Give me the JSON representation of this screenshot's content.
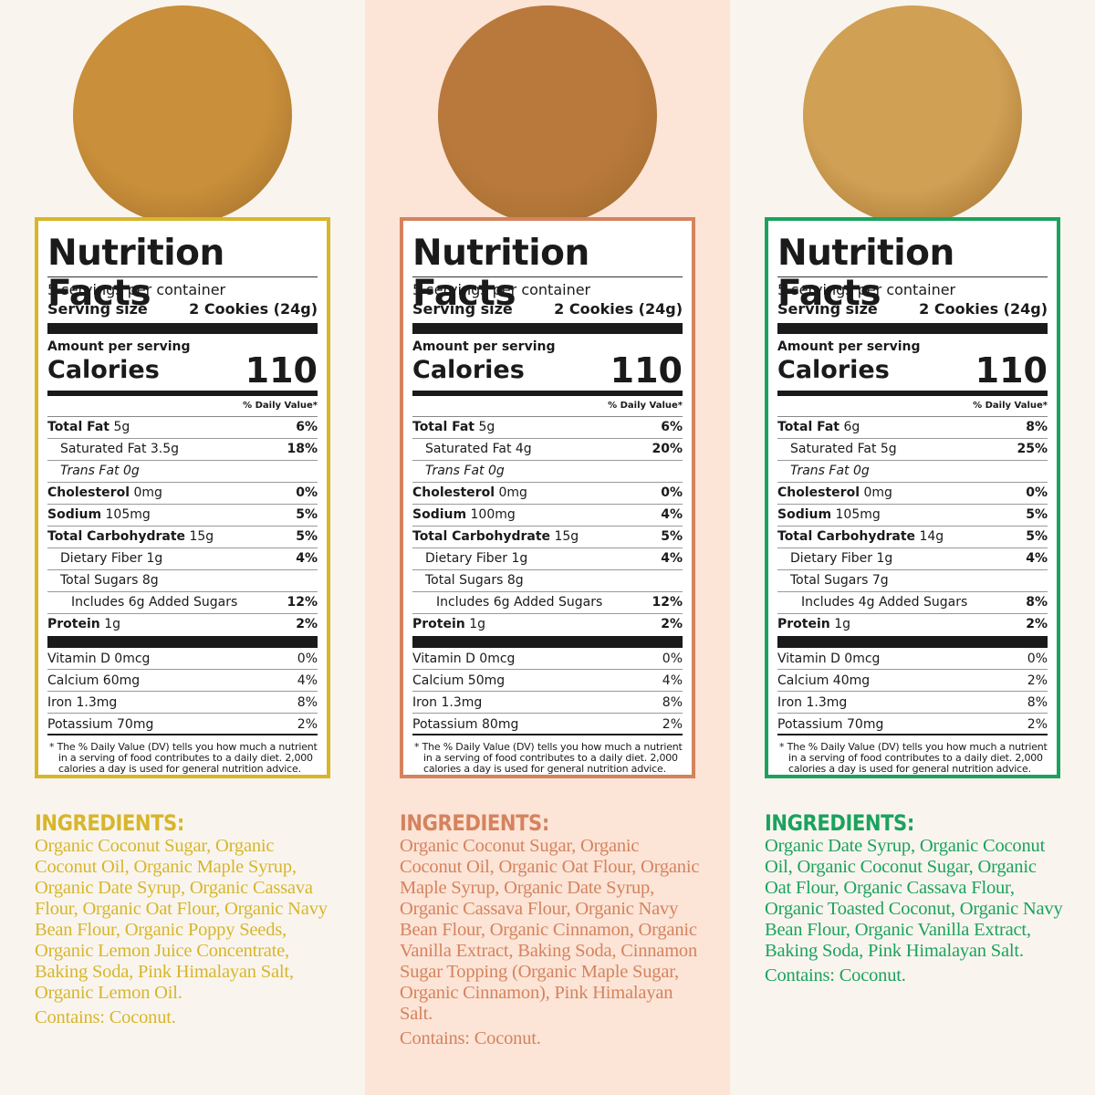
{
  "common": {
    "title": "Nutrition Facts",
    "servings": "5 servings per container",
    "serving_size_label": "Serving size",
    "serving_size_value": "2 Cookies (24g)",
    "amount_per_serving": "Amount per serving",
    "calories_label": "Calories",
    "dv_header": "% Daily Value*",
    "footnote": "* The % Daily Value (DV) tells you how much a nutrient in a serving of food contributes to a daily diet. 2,000 calories a day is used for general nutrition advice.",
    "ingredients_heading": "INGREDIENTS:"
  },
  "products": [
    {
      "accent": "#d8b52b",
      "cookie_color": "#c98f3a",
      "calories": "110",
      "nutrients": [
        {
          "bold": "Total Fat",
          "val": " 5g",
          "dv": "6%",
          "indent": 0
        },
        {
          "bold": "",
          "val": "Saturated Fat 3.5g",
          "dv": "18%",
          "indent": 1
        },
        {
          "bold": "",
          "val": "Trans Fat 0g",
          "dv": "",
          "indent": 1,
          "italic": true
        },
        {
          "bold": "Cholesterol",
          "val": " 0mg",
          "dv": "0%",
          "indent": 0
        },
        {
          "bold": "Sodium",
          "val": " 105mg",
          "dv": "5%",
          "indent": 0
        },
        {
          "bold": "Total Carbohydrate",
          "val": " 15g",
          "dv": "5%",
          "indent": 0
        },
        {
          "bold": "",
          "val": "Dietary Fiber 1g",
          "dv": "4%",
          "indent": 1
        },
        {
          "bold": "",
          "val": "Total Sugars 8g",
          "dv": "",
          "indent": 1
        },
        {
          "bold": "",
          "val": "Includes 6g Added Sugars",
          "dv": "12%",
          "indent": 2
        },
        {
          "bold": "Protein",
          "val": " 1g",
          "dv": "2%",
          "indent": 0
        }
      ],
      "vitamins": [
        {
          "name": "Vitamin D 0mcg",
          "dv": "0%"
        },
        {
          "name": "Calcium 60mg",
          "dv": "4%"
        },
        {
          "name": "Iron 1.3mg",
          "dv": "8%"
        },
        {
          "name": "Potassium 70mg",
          "dv": "2%"
        }
      ],
      "ingredients": "Organic Coconut Sugar, Organic Coconut Oil, Organic Maple Syrup, Organic Date Syrup, Organic Cassava Flour, Organic Oat Flour, Organic Navy Bean Flour, Organic Poppy Seeds, Organic Lemon Juice Concentrate, Baking Soda, Pink Himalayan Salt, Organic Lemon Oil.",
      "contains": "Contains: Coconut."
    },
    {
      "accent": "#d4835e",
      "cookie_color": "#b9793c",
      "calories": "110",
      "nutrients": [
        {
          "bold": "Total Fat",
          "val": " 5g",
          "dv": "6%",
          "indent": 0
        },
        {
          "bold": "",
          "val": "Saturated Fat 4g",
          "dv": "20%",
          "indent": 1
        },
        {
          "bold": "",
          "val": "Trans Fat 0g",
          "dv": "",
          "indent": 1,
          "italic": true
        },
        {
          "bold": "Cholesterol",
          "val": " 0mg",
          "dv": "0%",
          "indent": 0
        },
        {
          "bold": "Sodium",
          "val": " 100mg",
          "dv": "4%",
          "indent": 0
        },
        {
          "bold": "Total Carbohydrate",
          "val": " 15g",
          "dv": "5%",
          "indent": 0
        },
        {
          "bold": "",
          "val": "Dietary Fiber 1g",
          "dv": "4%",
          "indent": 1
        },
        {
          "bold": "",
          "val": "Total Sugars 8g",
          "dv": "",
          "indent": 1
        },
        {
          "bold": "",
          "val": "Includes 6g Added Sugars",
          "dv": "12%",
          "indent": 2
        },
        {
          "bold": "Protein",
          "val": " 1g",
          "dv": "2%",
          "indent": 0
        }
      ],
      "vitamins": [
        {
          "name": "Vitamin D 0mcg",
          "dv": "0%"
        },
        {
          "name": "Calcium 50mg",
          "dv": "4%"
        },
        {
          "name": "Iron 1.3mg",
          "dv": "8%"
        },
        {
          "name": "Potassium 80mg",
          "dv": "2%"
        }
      ],
      "ingredients": "Organic Coconut Sugar, Organic Coconut Oil, Organic Oat Flour, Organic Maple Syrup, Organic Date Syrup, Organic Cassava Flour, Organic Navy Bean Flour, Organic Cinnamon, Organic Vanilla Extract, Baking Soda, Cinnamon Sugar Topping (Organic Maple Sugar, Organic Cinnamon), Pink Himalayan Salt.",
      "contains": "Contains: Coconut."
    },
    {
      "accent": "#1ba25e",
      "cookie_color": "#d0a055",
      "calories": "110",
      "nutrients": [
        {
          "bold": "Total Fat",
          "val": " 6g",
          "dv": "8%",
          "indent": 0
        },
        {
          "bold": "",
          "val": "Saturated Fat 5g",
          "dv": "25%",
          "indent": 1
        },
        {
          "bold": "",
          "val": "Trans Fat 0g",
          "dv": "",
          "indent": 1,
          "italic": true
        },
        {
          "bold": "Cholesterol",
          "val": " 0mg",
          "dv": "0%",
          "indent": 0
        },
        {
          "bold": "Sodium",
          "val": " 105mg",
          "dv": "5%",
          "indent": 0
        },
        {
          "bold": "Total Carbohydrate",
          "val": " 14g",
          "dv": "5%",
          "indent": 0
        },
        {
          "bold": "",
          "val": "Dietary Fiber 1g",
          "dv": "4%",
          "indent": 1
        },
        {
          "bold": "",
          "val": "Total Sugars 7g",
          "dv": "",
          "indent": 1
        },
        {
          "bold": "",
          "val": "Includes 4g Added Sugars",
          "dv": "8%",
          "indent": 2
        },
        {
          "bold": "Protein",
          "val": " 1g",
          "dv": "2%",
          "indent": 0
        }
      ],
      "vitamins": [
        {
          "name": "Vitamin D 0mcg",
          "dv": "0%"
        },
        {
          "name": "Calcium 40mg",
          "dv": "2%"
        },
        {
          "name": "Iron 1.3mg",
          "dv": "8%"
        },
        {
          "name": "Potassium 70mg",
          "dv": "2%"
        }
      ],
      "ingredients": "Organic Date Syrup, Organic Coconut Oil, Organic Coconut Sugar, Organic Oat Flour, Organic Cassava Flour, Organic Toasted Coconut, Organic Navy Bean Flour, Organic Vanilla Extract, Baking Soda, Pink Himalayan Salt.",
      "contains": "Contains: Coconut."
    }
  ]
}
